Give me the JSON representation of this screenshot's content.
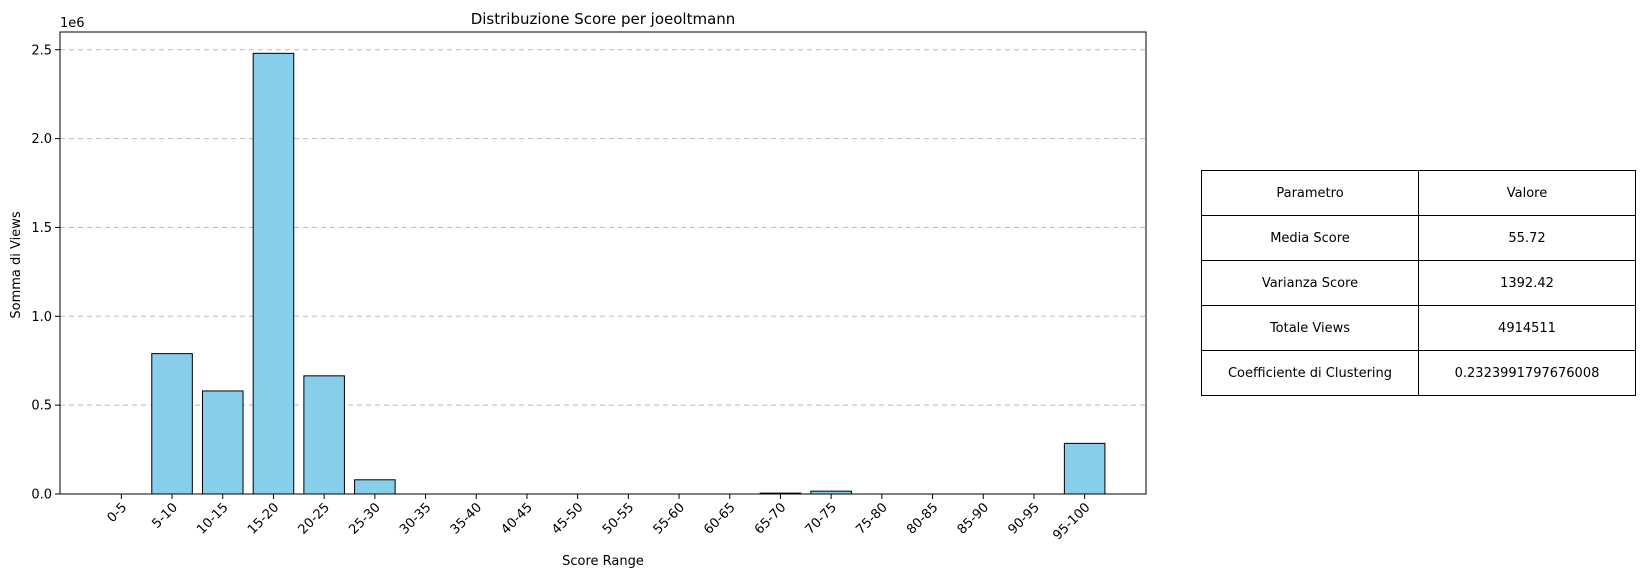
{
  "chart_data": {
    "type": "bar",
    "title": "Distribuzione Score per joeoltmann",
    "xlabel": "Score Range",
    "ylabel": "Somma di Views",
    "y_offset_label": "1e6",
    "categories": [
      "0-5",
      "5-10",
      "10-15",
      "15-20",
      "20-25",
      "25-30",
      "30-35",
      "35-40",
      "40-45",
      "45-50",
      "50-55",
      "55-60",
      "60-65",
      "65-70",
      "70-75",
      "75-80",
      "80-85",
      "85-90",
      "90-95",
      "95-100"
    ],
    "values": [
      0,
      790000,
      580000,
      2480000,
      665000,
      80000,
      0,
      0,
      0,
      0,
      0,
      0,
      0,
      5000,
      16000,
      0,
      0,
      0,
      0,
      285000
    ],
    "ylim": [
      0,
      2600000
    ],
    "yticks": [
      0,
      500000,
      1000000,
      1500000,
      2000000,
      2500000
    ],
    "ytick_labels": [
      "0.0",
      "0.5",
      "1.0",
      "1.5",
      "2.0",
      "2.5"
    ],
    "grid": "y-dashed",
    "bar_color": "#87ceeb",
    "edge_color": "#000000"
  },
  "table": {
    "headers": [
      "Parametro",
      "Valore"
    ],
    "rows": [
      [
        "Media Score",
        "55.72"
      ],
      [
        "Varianza Score",
        "1392.42"
      ],
      [
        "Totale Views",
        "4914511"
      ],
      [
        "Coefficiente di Clustering",
        "0.2323991797676008"
      ]
    ]
  }
}
